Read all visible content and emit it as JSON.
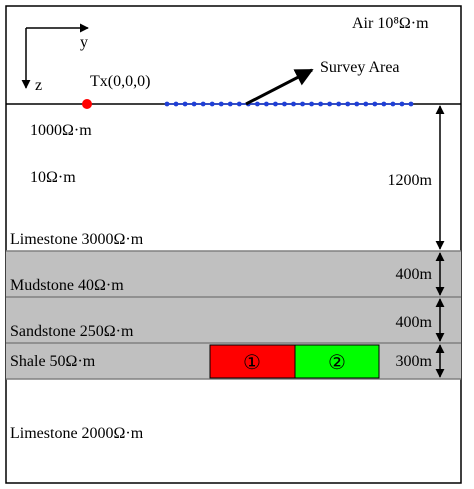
{
  "air": {
    "label": "Air  10⁸Ω·m"
  },
  "axes": {
    "y_label": "y",
    "z_label": "z"
  },
  "transmitter": {
    "label": "Tx(0,0,0)",
    "color": "#ff0000"
  },
  "survey": {
    "label": "Survey Area",
    "receiver_color": "#1f3fd6"
  },
  "layers": [
    {
      "label": "1000Ω·m"
    },
    {
      "label": "10Ω·m"
    },
    {
      "label": "Limestone  3000Ω·m"
    },
    {
      "label": "Mudstone  40Ω·m"
    },
    {
      "label": "Sandstone  250Ω·m"
    },
    {
      "label": "Shale  50Ω·m"
    },
    {
      "label": "Limestone  2000Ω·m"
    }
  ],
  "thickness": {
    "t1": "1200m",
    "t2": "400m",
    "t3": "400m",
    "t4": "300m"
  },
  "anomalies": [
    {
      "label": "①",
      "color": "#ff0000"
    },
    {
      "label": "②",
      "color": "#00ff00"
    }
  ],
  "colors": {
    "band_fill": "#c0c0c0",
    "band_border": "#808080"
  }
}
